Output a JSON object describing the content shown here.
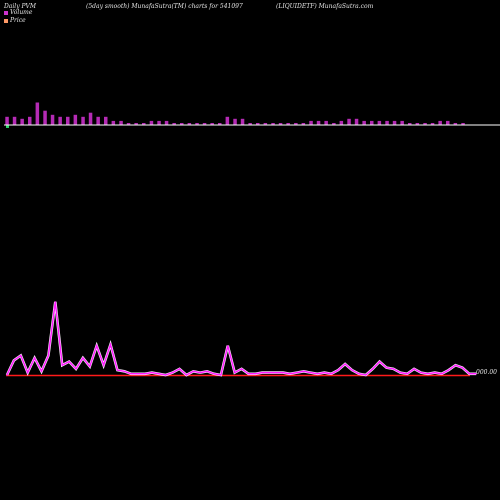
{
  "header": {
    "left": "Daily PVM",
    "center": "(5day smooth) MunafaSutra(TM) charts for 541097",
    "right": "(LIQUIDETF) MunafaSutra.com"
  },
  "legend": {
    "volume_label": "Volume",
    "price_label": "Price",
    "volume_color": "#cc33cc",
    "price_color": "#ff9966"
  },
  "colors": {
    "volume_bar": "#b52bb5",
    "volume_bar_last": "#2fd36b",
    "volume_line": "#ffffff",
    "price_line": "#ff1aff",
    "baseline": "#ff1a1a"
  },
  "chart_data": [
    {
      "type": "bar",
      "series": [
        {
          "values": [
            4,
            4,
            3,
            4,
            11,
            7,
            5,
            4,
            4,
            5,
            4,
            6,
            4,
            4,
            2,
            2,
            1,
            1,
            1,
            2,
            2,
            2,
            1,
            1,
            1,
            1,
            1,
            1,
            1,
            4,
            3,
            3,
            1,
            1,
            1,
            1,
            1,
            1,
            1,
            1,
            2,
            2,
            2,
            1,
            2,
            3,
            3,
            2,
            2,
            2,
            2,
            2,
            2,
            1,
            1,
            1,
            1,
            2,
            2,
            1,
            1
          ]
        }
      ]
    },
    {
      "type": "line",
      "series": [
        {
          "values": [
            0,
            12,
            16,
            2,
            14,
            3,
            16,
            60,
            8,
            11,
            5,
            14,
            7,
            24,
            8,
            25,
            4,
            3,
            1,
            1,
            1,
            2,
            1,
            0,
            2,
            5,
            0,
            3,
            2,
            3,
            1,
            0,
            24,
            2,
            5,
            1,
            1,
            2,
            2,
            2,
            2,
            1,
            2,
            3,
            2,
            1,
            2,
            1,
            4,
            9,
            4,
            1,
            0,
            5,
            11,
            6,
            5,
            2,
            1,
            5,
            2,
            1,
            2,
            1,
            4,
            8,
            6,
            1,
            1
          ]
        }
      ],
      "last_value": "000.00"
    }
  ]
}
